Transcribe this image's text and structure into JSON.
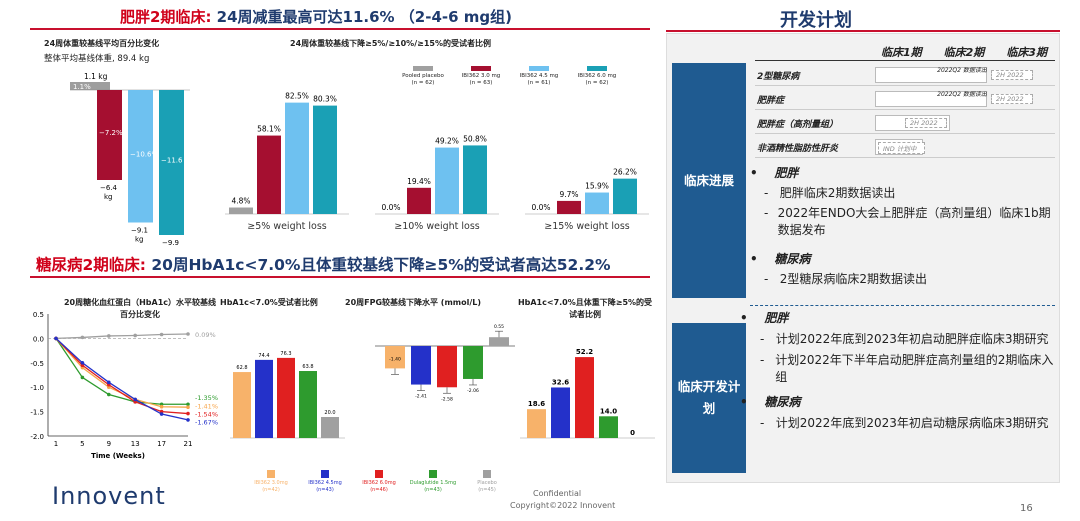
{
  "title_left": {
    "red": "肥胖2期临床:",
    "blue": " 24周减重最高可达11.6% （2-4-6 mg组)"
  },
  "title_right": "开发计划",
  "title2": {
    "red": "糖尿病2期临床:",
    "blue": " 20周HbA1c<7.0%且体重较基线下降≥5%的受试者高达52.2%"
  },
  "chart1": {
    "title": "24周体重较基线平均百分比变化",
    "subtitle": "整体平均基线体重, 89.4 kg",
    "top_label": "1.1 kg",
    "top_value": "1.1%",
    "bars": [
      {
        "pct": "−7.2%",
        "kg": "−6.4 kg",
        "value": -7.2,
        "color": "#a50f30"
      },
      {
        "pct": "−10.6%",
        "kg": "−9.1 kg",
        "value": -10.6,
        "color": "#6ec1f0"
      },
      {
        "pct": "−11.6 %",
        "kg": "−9.9 kg",
        "value": -11.6,
        "color": "#1aa0b5"
      }
    ]
  },
  "chart2": {
    "title": "24周体重较基线下降≥5%/≥10%/≥15%的受试者比例",
    "legend": [
      {
        "name": "Pooled placebo",
        "n": "(n = 62)",
        "color": "#a0a0a0"
      },
      {
        "name": "IBI362 3.0 mg",
        "n": "(n = 63)",
        "color": "#a50f30"
      },
      {
        "name": "IBI362 4.5 mg",
        "n": "(n = 61)",
        "color": "#6ec1f0"
      },
      {
        "name": "IBI362 6.0 mg",
        "n": "(n = 62)",
        "color": "#1aa0b5"
      }
    ],
    "groups": [
      {
        "label": "≥5% weight loss",
        "values": [
          4.8,
          58.1,
          82.5,
          80.3
        ],
        "texts": [
          "4.8%",
          "58.1%",
          "82.5%",
          "80.3%"
        ]
      },
      {
        "label": "≥10% weight loss",
        "values": [
          0,
          19.4,
          49.2,
          50.8
        ],
        "texts": [
          "0.0%",
          "19.4%",
          "49.2%",
          "50.8%"
        ]
      },
      {
        "label": "≥15% weight loss",
        "values": [
          0,
          9.7,
          15.9,
          26.2
        ],
        "texts": [
          "0.0%",
          "9.7%",
          "15.9%",
          "26.2%"
        ]
      }
    ]
  },
  "chart3": {
    "title": "20周糖化血红蛋白（HbA1c）水平较基线百分比变化",
    "xlabel": "Time (Weeks)",
    "xticks": [
      "1",
      "5",
      "9",
      "13",
      "17",
      "21"
    ],
    "yticks": [
      "0.5",
      "0.0",
      "-0.5",
      "-1.0",
      "-1.5",
      "-2.0"
    ],
    "series": [
      {
        "name": "placebo",
        "color": "#a0a0a0",
        "end": "0.09%",
        "values": [
          0,
          0.02,
          0.05,
          0.06,
          0.08,
          0.09
        ]
      },
      {
        "name": "green",
        "color": "#2e9b2e",
        "end": "-1.35%",
        "values": [
          0,
          -0.8,
          -1.15,
          -1.3,
          -1.35,
          -1.35
        ]
      },
      {
        "name": "orange",
        "color": "#f7a54a",
        "end": "-1.41%",
        "values": [
          0,
          -0.6,
          -1.0,
          -1.25,
          -1.4,
          -1.41
        ]
      },
      {
        "name": "red",
        "color": "#e02020",
        "end": "-1.54%",
        "values": [
          0,
          -0.55,
          -0.95,
          -1.3,
          -1.5,
          -1.54
        ]
      },
      {
        "name": "blue",
        "color": "#2431c9",
        "end": "-1.67%",
        "values": [
          0,
          -0.5,
          -0.9,
          -1.25,
          -1.55,
          -1.67
        ]
      }
    ]
  },
  "chart4": {
    "title": "HbA1c<7.0%受试者比例",
    "values": [
      62.8,
      74.4,
      76.3,
      63.8,
      20.0
    ],
    "texts": [
      "62.8",
      "74.4",
      "76.3",
      "63.8",
      "20.0"
    ]
  },
  "chart5": {
    "title": "20周FPG较基线下降水平 (mmol/L)",
    "values": [
      -1.4,
      -2.41,
      -2.58,
      -2.06,
      0.55
    ],
    "texts": [
      "-1.40",
      "-2.41",
      "-2.58",
      "-2.06",
      "0.55"
    ]
  },
  "chart6": {
    "title": "HbA1c<7.0%且体重下降≥5%的受试者比例",
    "values": [
      18.6,
      32.6,
      52.2,
      14.0,
      0
    ],
    "texts": [
      "18.6",
      "32.6",
      "52.2",
      "14.0",
      "0"
    ]
  },
  "legend2": [
    {
      "name": "IBI362 3.0mg",
      "n": "(n=42)",
      "color": "#f7b26a"
    },
    {
      "name": "IBI362 4.5mg",
      "n": "(n=43)",
      "color": "#2431c9"
    },
    {
      "name": "IBI362 6.0mg",
      "n": "(n=46)",
      "color": "#e02020"
    },
    {
      "name": "Dulaglutide 1.5mg",
      "n": "(n=43)",
      "color": "#2e9b2e"
    },
    {
      "name": "Placebo",
      "n": "(n=45)",
      "color": "#a0a0a0"
    }
  ],
  "colors5": [
    "#f7b26a",
    "#2431c9",
    "#e02020",
    "#2e9b2e",
    "#a0a0a0"
  ],
  "gantt": {
    "headers": [
      "临床1期",
      "临床2期",
      "临床3期"
    ],
    "rows": [
      {
        "label": "2型糖尿病",
        "note": "2022Q2 数据读出",
        "tag": "2H 2022"
      },
      {
        "label": "肥胖症",
        "note": "2022Q2 数据读出",
        "tag": "2H 2022"
      },
      {
        "label": "肥胖症（高剂量组）",
        "note": "",
        "tag": "2H 2022"
      },
      {
        "label": "非酒精性脂肪性肝炎",
        "note": "",
        "tag": "IND 计划中"
      }
    ]
  },
  "progress": {
    "side": "临床进展",
    "h1": "肥胖",
    "items1": [
      "肥胖临床2期数据读出",
      "2022年ENDO大会上肥胖症（高剂量组）临床1b期数据发布"
    ],
    "h2": "糖尿病",
    "items2": [
      "2型糖尿病临床2期数据读出"
    ]
  },
  "plan": {
    "side": "临床开发计划",
    "h1": "肥胖",
    "items1": [
      "计划2022年底到2023年初启动肥胖症临床3期研究",
      "计划2022年下半年启动肥胖症高剂量组的2期临床入组"
    ],
    "h2": "糖尿病",
    "items2": [
      "计划2022年底到2023年初启动糖尿病临床3期研究"
    ]
  },
  "footer": {
    "logo": "Innovent",
    "conf": "Confidential",
    "copy": "Copyright©2022  Innovent",
    "page": "16"
  }
}
